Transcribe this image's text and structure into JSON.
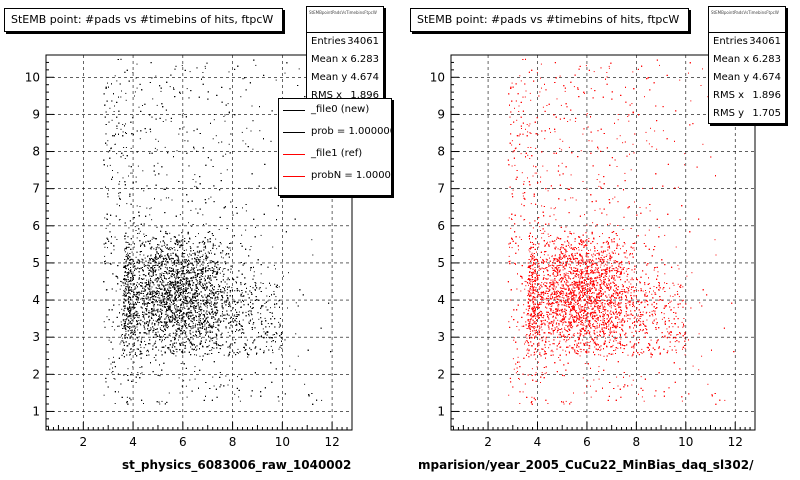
{
  "chart_data": [
    {
      "type": "scatter",
      "title": "StEMB point: #pads vs #timebins of hits, ftpcW",
      "xlabel": "st_physics_6083006_raw_1040002",
      "ylabel": "",
      "xlim": [
        0.5,
        12.8
      ],
      "ylim": [
        0.5,
        10.6
      ],
      "xticks": [
        2,
        4,
        6,
        8,
        10,
        12
      ],
      "yticks": [
        1,
        2,
        3,
        4,
        5,
        6,
        7,
        8,
        9,
        10
      ],
      "grid": true,
      "color": "#000000",
      "stats": {
        "header": "StEMBpointPadsVsTimebinsFtpcW",
        "rows": [
          {
            "label": "Entries",
            "value": "34061"
          },
          {
            "label": "Mean x",
            "value": "6.283"
          },
          {
            "label": "Mean y",
            "value": "4.674"
          },
          {
            "label": "RMS x",
            "value": "1.896"
          }
        ]
      },
      "legend": {
        "placement": "top-right",
        "entries": [
          {
            "label": "_file0 (new)",
            "color": "#000000"
          },
          {
            "label": "prob = 1.000000",
            "color": "#000000"
          },
          {
            "label": "_file1 (ref)",
            "color": "#ff0000"
          },
          {
            "label": "probN = 1.000000",
            "color": "#ff0000"
          }
        ]
      }
    },
    {
      "type": "scatter",
      "title": "StEMB point: #pads vs #timebins of hits, ftpcW",
      "xlabel": "mparision/year_2005_CuCu22_MinBias_daq_sl302/",
      "ylabel": "",
      "xlim": [
        0.5,
        12.8
      ],
      "ylim": [
        0.5,
        10.6
      ],
      "xticks": [
        2,
        4,
        6,
        8,
        10,
        12
      ],
      "yticks": [
        1,
        2,
        3,
        4,
        5,
        6,
        7,
        8,
        9,
        10
      ],
      "grid": true,
      "color": "#ff0000",
      "stats": {
        "header": "StEMBpointPadsVsTimebinsFtpcW",
        "rows": [
          {
            "label": "Entries",
            "value": "34061"
          },
          {
            "label": "Mean x",
            "value": "6.283"
          },
          {
            "label": "Mean y",
            "value": "4.674"
          },
          {
            "label": "RMS x",
            "value": "1.896"
          },
          {
            "label": "RMS y",
            "value": "1.705"
          }
        ]
      }
    }
  ]
}
